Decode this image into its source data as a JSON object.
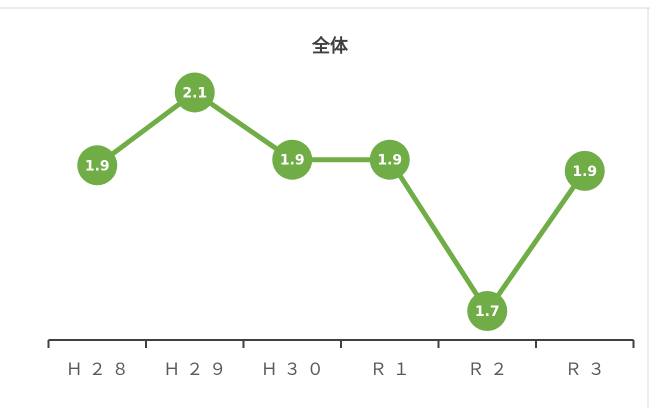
{
  "chart_data": {
    "type": "line",
    "title": "全体",
    "categories": [
      "Ｈ２８",
      "Ｈ２９",
      "Ｈ３０",
      "Ｒ１",
      "Ｒ２",
      "Ｒ３"
    ],
    "series": [
      {
        "name": "全体",
        "color": "#70ad47",
        "values": [
          1.93,
          2.06,
          1.94,
          1.94,
          1.67,
          1.92
        ],
        "value_labels": [
          "1.9",
          "2.1",
          "1.9",
          "1.9",
          "1.7",
          "1.9"
        ]
      }
    ],
    "ylim": [
      1.62,
      2.2
    ]
  }
}
